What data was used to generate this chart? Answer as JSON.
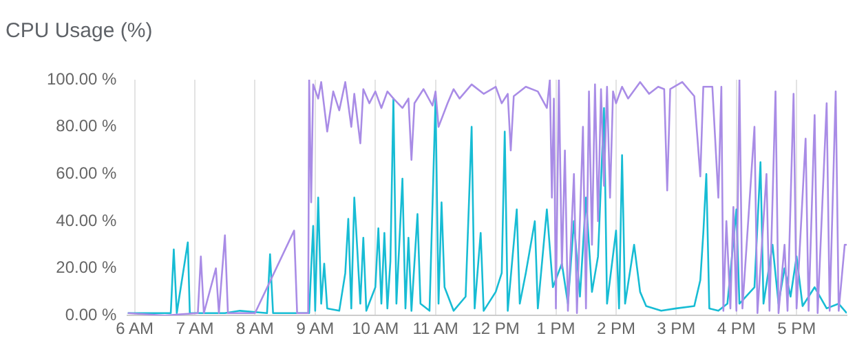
{
  "chart_data": {
    "type": "line",
    "title": "CPU Usage (%)",
    "xlim": [
      "--01-01T05:53",
      "--01-01T17:50"
    ],
    "xticks": [
      {
        "value": "--01-01T06:00",
        "label": "6 AM"
      },
      {
        "value": "--01-01T07:00",
        "label": "7 AM"
      },
      {
        "value": "--01-01T08:00",
        "label": "8 AM"
      },
      {
        "value": "--01-01T09:00",
        "label": "9 AM"
      },
      {
        "value": "--01-01T10:00",
        "label": "10 AM"
      },
      {
        "value": "--01-01T11:00",
        "label": "11 AM"
      },
      {
        "value": "--01-01T12:00",
        "label": "12 PM"
      },
      {
        "value": "--01-01T13:00",
        "label": "1 PM"
      },
      {
        "value": "--01-01T14:00",
        "label": "2 PM"
      },
      {
        "value": "--01-01T15:00",
        "label": "3 PM"
      },
      {
        "value": "--01-01T16:00",
        "label": "4 PM"
      },
      {
        "value": "--01-01T17:00",
        "label": "5 PM"
      }
    ],
    "ylim": [
      0,
      100
    ],
    "yticks": [
      {
        "value": 0,
        "label": "0.00 %"
      },
      {
        "value": 20,
        "label": "20.00 %"
      },
      {
        "value": 40,
        "label": "40.00 %"
      },
      {
        "value": 60,
        "label": "60.00 %"
      },
      {
        "value": 80,
        "label": "80.00 %"
      },
      {
        "value": 100,
        "label": "100.00 %"
      }
    ],
    "grid": "x",
    "legend": false,
    "marker": "none",
    "line_style": "solid",
    "series": [
      {
        "color": "#a98ce6",
        "x": [
          "--01-01T05:53",
          "--01-01T06:30",
          "--01-01T07:03",
          "--01-01T07:06",
          "--01-01T07:09",
          "--01-01T07:21",
          "--01-01T07:24",
          "--01-01T07:30",
          "--01-01T07:33",
          "--01-01T08:00",
          "--01-01T08:39",
          "--01-01T08:42",
          "--01-01T08:53",
          "--01-01T08:54",
          "--01-01T08:56",
          "--01-01T08:58",
          "--01-01T09:03",
          "--01-01T09:06",
          "--01-01T09:12",
          "--01-01T09:18",
          "--01-01T09:24",
          "--01-01T09:30",
          "--01-01T09:36",
          "--01-01T09:39",
          "--01-01T09:45",
          "--01-01T09:48",
          "--01-01T09:54",
          "--01-01T10:00",
          "--01-01T10:06",
          "--01-01T10:12",
          "--01-01T10:18",
          "--01-01T10:27",
          "--01-01T10:33",
          "--01-01T10:36",
          "--01-01T10:39",
          "--01-01T10:48",
          "--01-01T10:57",
          "--01-01T11:00",
          "--01-01T11:03",
          "--01-01T11:12",
          "--01-01T11:18",
          "--01-01T11:24",
          "--01-01T11:36",
          "--01-01T11:48",
          "--01-01T12:00",
          "--01-01T12:06",
          "--01-01T12:12",
          "--01-01T12:15",
          "--01-01T12:18",
          "--01-01T12:30",
          "--01-01T12:42",
          "--01-01T12:51",
          "--01-01T12:54",
          "--01-01T12:56",
          "--01-01T12:58",
          "--01-01T13:00",
          "--01-01T13:03",
          "--01-01T13:06",
          "--01-01T13:09",
          "--01-01T13:12",
          "--01-01T13:18",
          "--01-01T13:21",
          "--01-01T13:27",
          "--01-01T13:30",
          "--01-01T13:33",
          "--01-01T13:36",
          "--01-01T13:39",
          "--01-01T13:42",
          "--01-01T13:45",
          "--01-01T13:48",
          "--01-01T13:51",
          "--01-01T13:54",
          "--01-01T13:57",
          "--01-01T14:00",
          "--01-01T14:06",
          "--01-01T14:12",
          "--01-01T14:24",
          "--01-01T14:33",
          "--01-01T14:42",
          "--01-01T14:48",
          "--01-01T14:51",
          "--01-01T14:54",
          "--01-01T15:06",
          "--01-01T15:18",
          "--01-01T15:24",
          "--01-01T15:27",
          "--01-01T15:36",
          "--01-01T15:42",
          "--01-01T15:45",
          "--01-01T15:47",
          "--01-01T15:50",
          "--01-01T15:54",
          "--01-01T15:57",
          "--01-01T16:00",
          "--01-01T16:03",
          "--01-01T16:06",
          "--01-01T16:18",
          "--01-01T16:21",
          "--01-01T16:30",
          "--01-01T16:33",
          "--01-01T16:39",
          "--01-01T16:42",
          "--01-01T16:48",
          "--01-01T16:51",
          "--01-01T16:57",
          "--01-01T17:00",
          "--01-01T17:09",
          "--01-01T17:12",
          "--01-01T17:18",
          "--01-01T17:21",
          "--01-01T17:30",
          "--01-01T17:33",
          "--01-01T17:39",
          "--01-01T17:42",
          "--01-01T17:48",
          "--01-01T17:50"
        ],
        "values": [
          1,
          0,
          1,
          25,
          1,
          20,
          1,
          34,
          1,
          1,
          36,
          1,
          1,
          100,
          48,
          98,
          92,
          99,
          78,
          95,
          87,
          99,
          80,
          94,
          73,
          96,
          90,
          95,
          88,
          95,
          92,
          88,
          92,
          66,
          90,
          96,
          89,
          95,
          80,
          90,
          96,
          92,
          98,
          94,
          97,
          90,
          94,
          70,
          93,
          97,
          95,
          88,
          100,
          50,
          92,
          3,
          100,
          20,
          70,
          2,
          60,
          1,
          80,
          3,
          95,
          30,
          98,
          40,
          96,
          55,
          97,
          50,
          95,
          90,
          97,
          92,
          99,
          94,
          97,
          96,
          53,
          96,
          99,
          93,
          59,
          97,
          97,
          50,
          97,
          2,
          40,
          3,
          46,
          2,
          100,
          3,
          80,
          1,
          60,
          2,
          95,
          1,
          30,
          2,
          94,
          3,
          75,
          2,
          85,
          1,
          90,
          2,
          95,
          2,
          30,
          30
        ]
      },
      {
        "color": "#17bcd4",
        "x": [
          "--01-01T05:53",
          "--01-01T06:36",
          "--01-01T06:39",
          "--01-01T06:42",
          "--01-01T06:53",
          "--01-01T06:55",
          "--01-01T07:30",
          "--01-01T07:45",
          "--01-01T08:12",
          "--01-01T08:15",
          "--01-01T08:18",
          "--01-01T08:54",
          "--01-01T08:56",
          "--01-01T08:58",
          "--01-01T09:00",
          "--01-01T09:03",
          "--01-01T09:06",
          "--01-01T09:09",
          "--01-01T09:12",
          "--01-01T09:24",
          "--01-01T09:30",
          "--01-01T09:33",
          "--01-01T09:36",
          "--01-01T09:39",
          "--01-01T09:42",
          "--01-01T09:45",
          "--01-01T09:48",
          "--01-01T09:51",
          "--01-01T10:00",
          "--01-01T10:03",
          "--01-01T10:06",
          "--01-01T10:09",
          "--01-01T10:12",
          "--01-01T10:15",
          "--01-01T10:18",
          "--01-01T10:21",
          "--01-01T10:27",
          "--01-01T10:30",
          "--01-01T10:33",
          "--01-01T10:36",
          "--01-01T10:42",
          "--01-01T10:45",
          "--01-01T10:54",
          "--01-01T11:00",
          "--01-01T11:03",
          "--01-01T11:06",
          "--01-01T11:09",
          "--01-01T11:18",
          "--01-01T11:30",
          "--01-01T11:36",
          "--01-01T11:39",
          "--01-01T11:45",
          "--01-01T11:48",
          "--01-01T12:00",
          "--01-01T12:06",
          "--01-01T12:09",
          "--01-01T12:12",
          "--01-01T12:21",
          "--01-01T12:24",
          "--01-01T12:30",
          "--01-01T12:39",
          "--01-01T12:42",
          "--01-01T12:51",
          "--01-01T12:57",
          "--01-01T13:06",
          "--01-01T13:12",
          "--01-01T13:18",
          "--01-01T13:24",
          "--01-01T13:30",
          "--01-01T13:36",
          "--01-01T13:42",
          "--01-01T13:48",
          "--01-01T13:51",
          "--01-01T14:00",
          "--01-01T14:03",
          "--01-01T14:06",
          "--01-01T14:09",
          "--01-01T14:18",
          "--01-01T14:24",
          "--01-01T14:30",
          "--01-01T14:45",
          "--01-01T15:00",
          "--01-01T15:18",
          "--01-01T15:24",
          "--01-01T15:27",
          "--01-01T15:30",
          "--01-01T15:33",
          "--01-01T15:42",
          "--01-01T15:51",
          "--01-01T15:54",
          "--01-01T16:00",
          "--01-01T16:03",
          "--01-01T16:18",
          "--01-01T16:24",
          "--01-01T16:27",
          "--01-01T16:36",
          "--01-01T16:42",
          "--01-01T16:48",
          "--01-01T16:54",
          "--01-01T17:00",
          "--01-01T17:06",
          "--01-01T17:18",
          "--01-01T17:30",
          "--01-01T17:42",
          "--01-01T17:50"
        ],
        "values": [
          1,
          1,
          28,
          1,
          31,
          1,
          1,
          2,
          1,
          26,
          1,
          1,
          20,
          38,
          2,
          50,
          5,
          22,
          3,
          2,
          18,
          41,
          3,
          50,
          28,
          5,
          33,
          2,
          12,
          37,
          5,
          35,
          3,
          23,
          92,
          5,
          58,
          3,
          33,
          2,
          43,
          5,
          2,
          92,
          5,
          48,
          12,
          2,
          8,
          80,
          3,
          35,
          2,
          10,
          18,
          78,
          2,
          45,
          5,
          18,
          40,
          3,
          45,
          12,
          22,
          5,
          40,
          8,
          50,
          10,
          25,
          88,
          5,
          36,
          3,
          68,
          5,
          30,
          10,
          4,
          2,
          3,
          4,
          15,
          35,
          60,
          3,
          2,
          5,
          18,
          45,
          5,
          12,
          65,
          5,
          30,
          5,
          20,
          8,
          25,
          4,
          12,
          3,
          5,
          1
        ]
      }
    ]
  }
}
